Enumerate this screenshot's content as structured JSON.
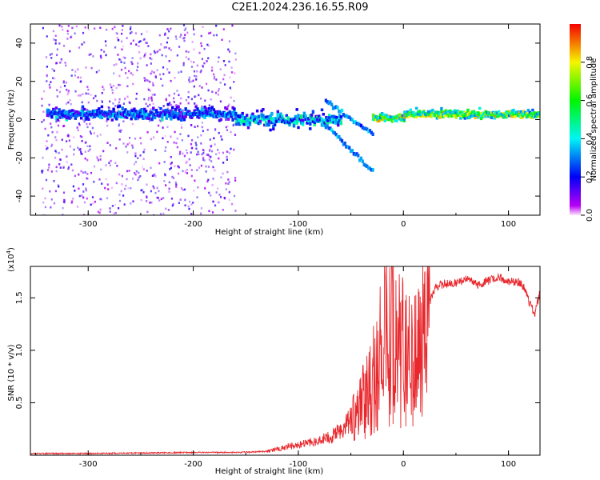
{
  "title": "C2E1.2024.236.16.55.R09",
  "chart_data": [
    {
      "type": "heatmap",
      "xlabel": "Height of straight line (km)",
      "ylabel": "Frequency (Hz)",
      "xlim": [
        -355,
        130
      ],
      "ylim": [
        -50,
        50
      ],
      "xticks": [
        "-300",
        "-200",
        "-100",
        "0",
        "100"
      ],
      "yticks": [
        "-40",
        "-20",
        "0",
        "20",
        "40"
      ],
      "colorbar": {
        "label": "Normalized spectral amplitude",
        "range": [
          0,
          1
        ],
        "ticks": [
          "0.0",
          "0.2",
          "0.4",
          "0.6",
          "0.8"
        ]
      },
      "features": [
        {
          "x": [
            -345,
            -160
          ],
          "freq": [
            -50,
            50
          ],
          "amplitude": 0.1
        },
        {
          "x": [
            -340,
            -160
          ],
          "freq": [
            -2,
            8
          ],
          "amplitude": 0.35
        },
        {
          "x": [
            -160,
            -60
          ],
          "freq": [
            -6,
            6
          ],
          "amplitude": 0.45
        },
        {
          "x": [
            -75,
            -30
          ],
          "freq": [
            -30,
            12
          ],
          "amplitude": 0.3
        },
        {
          "x": [
            -30,
            0
          ],
          "freq": [
            -2,
            4
          ],
          "amplitude": 0.85
        },
        {
          "x": [
            0,
            130
          ],
          "freq": [
            0,
            6
          ],
          "amplitude": 0.8
        }
      ]
    },
    {
      "type": "line",
      "xlabel": "Height of straight line (km)",
      "ylabel": "SNR (10 * v/v)",
      "yscale_label": "(x10",
      "yscale_exp": "4",
      "yscale_close": ")",
      "xlim": [
        -355,
        130
      ],
      "ylim": [
        0,
        1.8
      ],
      "xticks": [
        "-300",
        "-200",
        "-100",
        "0",
        "100"
      ],
      "yticks": [
        "0.5",
        "1.0",
        "1.5"
      ],
      "series": [
        {
          "color": "#e8282d",
          "x": [
            -355,
            -300,
            -250,
            -200,
            -160,
            -130,
            -110,
            -90,
            -70,
            -60,
            -50,
            -45,
            -40,
            -35,
            -30,
            -27,
            -25,
            -22,
            -20,
            -18,
            -16,
            -15,
            -12,
            -10,
            -8,
            -5,
            -2,
            0,
            5,
            10,
            15,
            20,
            25,
            30,
            40,
            50,
            60,
            70,
            80,
            90,
            100,
            110,
            115,
            120,
            125,
            130
          ],
          "y": [
            0.01,
            0.01,
            0.015,
            0.02,
            0.02,
            0.03,
            0.07,
            0.1,
            0.14,
            0.2,
            0.3,
            0.42,
            0.6,
            0.65,
            0.75,
            0.95,
            0.85,
            1.0,
            0.6,
            1.4,
            1.85,
            0.5,
            1.5,
            1.2,
            1.05,
            1.1,
            1.05,
            1.1,
            1.05,
            1.1,
            1.15,
            1.3,
            1.45,
            1.6,
            1.64,
            1.64,
            1.68,
            1.62,
            1.66,
            1.7,
            1.66,
            1.65,
            1.6,
            1.45,
            1.35,
            1.55
          ]
        }
      ]
    }
  ]
}
